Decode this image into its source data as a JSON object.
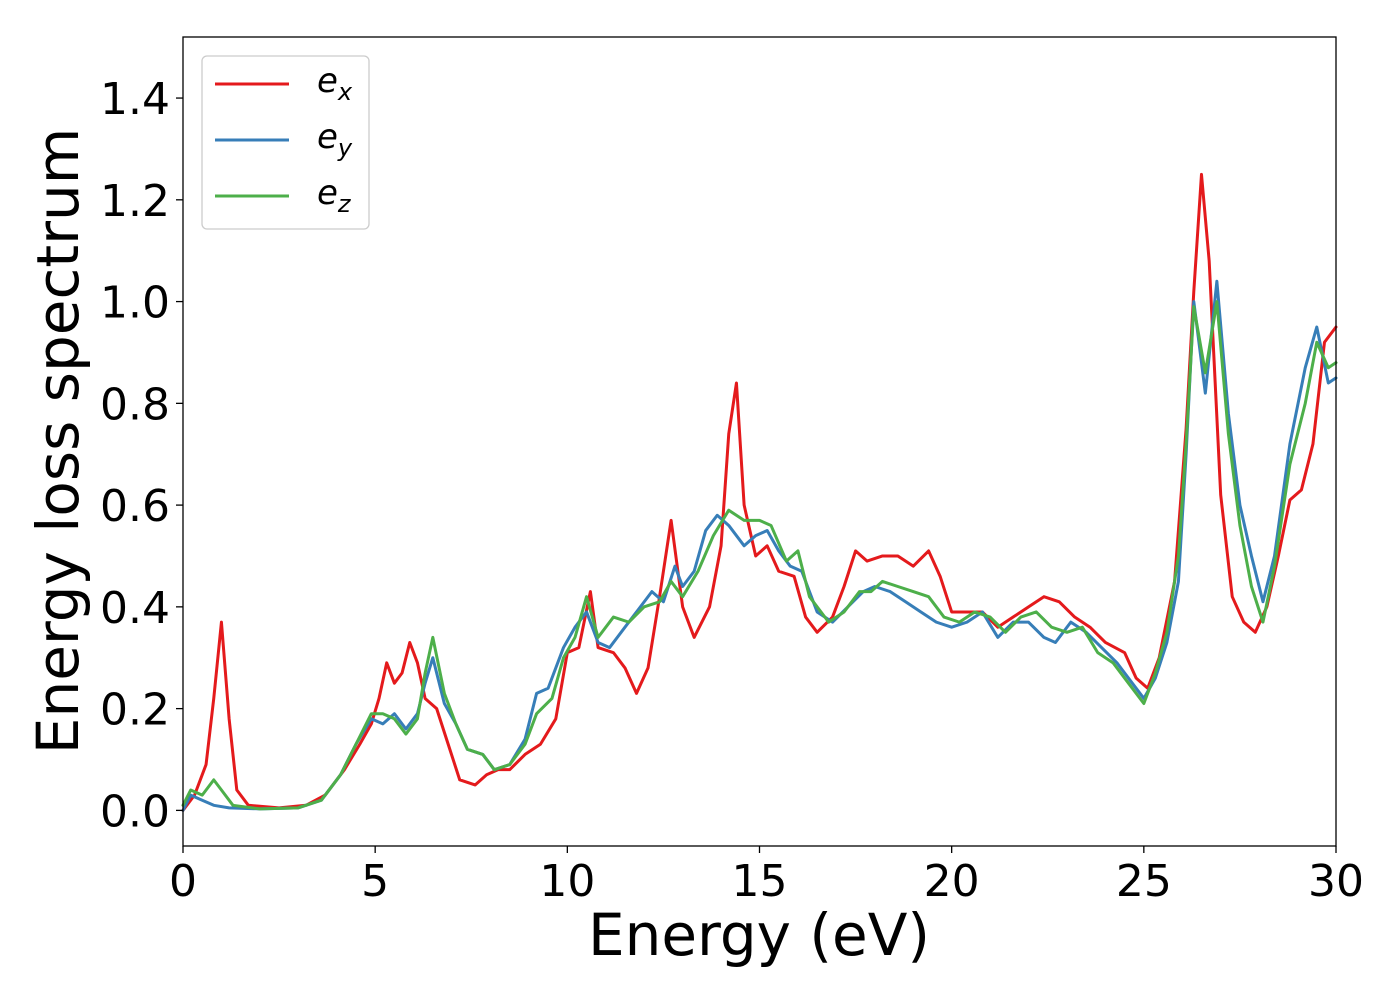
{
  "chart_data": {
    "type": "line",
    "title": "",
    "xlabel": "Energy (eV)",
    "ylabel": "Energy loss spectrum",
    "xlim": [
      0,
      30
    ],
    "ylim": [
      -0.07,
      1.52
    ],
    "xticks": [
      0,
      5,
      10,
      15,
      20,
      25,
      30
    ],
    "xtick_labels": [
      "0",
      "5",
      "10",
      "15",
      "20",
      "25",
      "30"
    ],
    "yticks": [
      0.0,
      0.2,
      0.4,
      0.6,
      0.8,
      1.0,
      1.2,
      1.4
    ],
    "ytick_labels": [
      "0.0",
      "0.2",
      "0.4",
      "0.6",
      "0.8",
      "1.0",
      "1.2",
      "1.4"
    ],
    "grid": false,
    "legend_position": "top-left",
    "series": [
      {
        "name_base": "e",
        "name_sub": "x",
        "color": "#e41a1c",
        "points": [
          [
            0.0,
            0.0
          ],
          [
            0.3,
            0.03
          ],
          [
            0.6,
            0.09
          ],
          [
            0.8,
            0.22
          ],
          [
            1.0,
            0.37
          ],
          [
            1.2,
            0.18
          ],
          [
            1.4,
            0.04
          ],
          [
            1.7,
            0.01
          ],
          [
            2.5,
            0.005
          ],
          [
            3.2,
            0.01
          ],
          [
            3.7,
            0.03
          ],
          [
            4.2,
            0.08
          ],
          [
            4.6,
            0.13
          ],
          [
            4.9,
            0.17
          ],
          [
            5.1,
            0.22
          ],
          [
            5.3,
            0.29
          ],
          [
            5.5,
            0.25
          ],
          [
            5.7,
            0.27
          ],
          [
            5.9,
            0.33
          ],
          [
            6.1,
            0.29
          ],
          [
            6.3,
            0.22
          ],
          [
            6.6,
            0.2
          ],
          [
            6.9,
            0.13
          ],
          [
            7.2,
            0.06
          ],
          [
            7.6,
            0.05
          ],
          [
            7.9,
            0.07
          ],
          [
            8.2,
            0.08
          ],
          [
            8.5,
            0.08
          ],
          [
            8.9,
            0.11
          ],
          [
            9.3,
            0.13
          ],
          [
            9.7,
            0.18
          ],
          [
            10.0,
            0.31
          ],
          [
            10.3,
            0.32
          ],
          [
            10.6,
            0.43
          ],
          [
            10.8,
            0.32
          ],
          [
            11.2,
            0.31
          ],
          [
            11.5,
            0.28
          ],
          [
            11.8,
            0.23
          ],
          [
            12.1,
            0.28
          ],
          [
            12.4,
            0.42
          ],
          [
            12.7,
            0.57
          ],
          [
            13.0,
            0.4
          ],
          [
            13.3,
            0.34
          ],
          [
            13.7,
            0.4
          ],
          [
            14.0,
            0.52
          ],
          [
            14.2,
            0.74
          ],
          [
            14.4,
            0.84
          ],
          [
            14.6,
            0.6
          ],
          [
            14.9,
            0.5
          ],
          [
            15.2,
            0.52
          ],
          [
            15.5,
            0.47
          ],
          [
            15.9,
            0.46
          ],
          [
            16.2,
            0.38
          ],
          [
            16.5,
            0.35
          ],
          [
            16.9,
            0.38
          ],
          [
            17.2,
            0.44
          ],
          [
            17.5,
            0.51
          ],
          [
            17.8,
            0.49
          ],
          [
            18.2,
            0.5
          ],
          [
            18.6,
            0.5
          ],
          [
            19.0,
            0.48
          ],
          [
            19.4,
            0.51
          ],
          [
            19.7,
            0.46
          ],
          [
            20.0,
            0.39
          ],
          [
            20.4,
            0.39
          ],
          [
            20.8,
            0.39
          ],
          [
            21.2,
            0.36
          ],
          [
            21.6,
            0.38
          ],
          [
            22.0,
            0.4
          ],
          [
            22.4,
            0.42
          ],
          [
            22.8,
            0.41
          ],
          [
            23.2,
            0.38
          ],
          [
            23.6,
            0.36
          ],
          [
            24.0,
            0.33
          ],
          [
            24.5,
            0.31
          ],
          [
            24.8,
            0.26
          ],
          [
            25.1,
            0.24
          ],
          [
            25.4,
            0.3
          ],
          [
            25.8,
            0.45
          ],
          [
            26.1,
            0.75
          ],
          [
            26.3,
            1.02
          ],
          [
            26.5,
            1.25
          ],
          [
            26.7,
            1.08
          ],
          [
            27.0,
            0.62
          ],
          [
            27.3,
            0.42
          ],
          [
            27.6,
            0.37
          ],
          [
            27.9,
            0.35
          ],
          [
            28.2,
            0.4
          ],
          [
            28.5,
            0.5
          ],
          [
            28.8,
            0.61
          ],
          [
            29.1,
            0.63
          ],
          [
            29.4,
            0.72
          ],
          [
            29.7,
            0.92
          ],
          [
            30.0,
            0.95
          ]
        ]
      },
      {
        "name_base": "e",
        "name_sub": "y",
        "color": "#377eb8",
        "points": [
          [
            0.0,
            0.0
          ],
          [
            0.2,
            0.03
          ],
          [
            0.5,
            0.02
          ],
          [
            0.8,
            0.01
          ],
          [
            1.2,
            0.005
          ],
          [
            2.0,
            0.003
          ],
          [
            3.0,
            0.005
          ],
          [
            3.6,
            0.02
          ],
          [
            4.1,
            0.07
          ],
          [
            4.5,
            0.13
          ],
          [
            4.9,
            0.18
          ],
          [
            5.2,
            0.17
          ],
          [
            5.5,
            0.19
          ],
          [
            5.8,
            0.16
          ],
          [
            6.1,
            0.19
          ],
          [
            6.3,
            0.25
          ],
          [
            6.5,
            0.3
          ],
          [
            6.8,
            0.21
          ],
          [
            7.1,
            0.17
          ],
          [
            7.4,
            0.12
          ],
          [
            7.8,
            0.11
          ],
          [
            8.1,
            0.08
          ],
          [
            8.5,
            0.09
          ],
          [
            8.9,
            0.14
          ],
          [
            9.2,
            0.23
          ],
          [
            9.5,
            0.24
          ],
          [
            9.9,
            0.32
          ],
          [
            10.2,
            0.36
          ],
          [
            10.5,
            0.39
          ],
          [
            10.8,
            0.33
          ],
          [
            11.1,
            0.32
          ],
          [
            11.5,
            0.36
          ],
          [
            11.9,
            0.4
          ],
          [
            12.2,
            0.43
          ],
          [
            12.5,
            0.41
          ],
          [
            12.8,
            0.48
          ],
          [
            13.0,
            0.44
          ],
          [
            13.3,
            0.47
          ],
          [
            13.6,
            0.55
          ],
          [
            13.9,
            0.58
          ],
          [
            14.2,
            0.56
          ],
          [
            14.6,
            0.52
          ],
          [
            14.9,
            0.54
          ],
          [
            15.2,
            0.55
          ],
          [
            15.5,
            0.51
          ],
          [
            15.8,
            0.48
          ],
          [
            16.1,
            0.47
          ],
          [
            16.5,
            0.39
          ],
          [
            16.9,
            0.37
          ],
          [
            17.3,
            0.4
          ],
          [
            17.7,
            0.43
          ],
          [
            18.0,
            0.44
          ],
          [
            18.4,
            0.43
          ],
          [
            18.8,
            0.41
          ],
          [
            19.2,
            0.39
          ],
          [
            19.6,
            0.37
          ],
          [
            20.0,
            0.36
          ],
          [
            20.4,
            0.37
          ],
          [
            20.8,
            0.39
          ],
          [
            21.2,
            0.34
          ],
          [
            21.6,
            0.37
          ],
          [
            22.0,
            0.37
          ],
          [
            22.4,
            0.34
          ],
          [
            22.7,
            0.33
          ],
          [
            23.1,
            0.37
          ],
          [
            23.5,
            0.35
          ],
          [
            23.9,
            0.32
          ],
          [
            24.3,
            0.29
          ],
          [
            24.7,
            0.25
          ],
          [
            25.0,
            0.22
          ],
          [
            25.3,
            0.26
          ],
          [
            25.6,
            0.33
          ],
          [
            25.9,
            0.45
          ],
          [
            26.1,
            0.7
          ],
          [
            26.3,
            1.0
          ],
          [
            26.6,
            0.82
          ],
          [
            26.9,
            1.04
          ],
          [
            27.2,
            0.78
          ],
          [
            27.5,
            0.6
          ],
          [
            27.8,
            0.5
          ],
          [
            28.1,
            0.41
          ],
          [
            28.4,
            0.5
          ],
          [
            28.8,
            0.72
          ],
          [
            29.2,
            0.87
          ],
          [
            29.5,
            0.95
          ],
          [
            29.8,
            0.84
          ],
          [
            30.0,
            0.85
          ]
        ]
      },
      {
        "name_base": "e",
        "name_sub": "z",
        "color": "#4daf4a",
        "points": [
          [
            0.0,
            0.01
          ],
          [
            0.2,
            0.04
          ],
          [
            0.5,
            0.03
          ],
          [
            0.8,
            0.06
          ],
          [
            1.0,
            0.04
          ],
          [
            1.3,
            0.01
          ],
          [
            2.0,
            0.003
          ],
          [
            3.0,
            0.005
          ],
          [
            3.6,
            0.02
          ],
          [
            4.1,
            0.07
          ],
          [
            4.5,
            0.13
          ],
          [
            4.9,
            0.19
          ],
          [
            5.2,
            0.19
          ],
          [
            5.5,
            0.18
          ],
          [
            5.8,
            0.15
          ],
          [
            6.1,
            0.18
          ],
          [
            6.3,
            0.27
          ],
          [
            6.5,
            0.34
          ],
          [
            6.8,
            0.23
          ],
          [
            7.1,
            0.17
          ],
          [
            7.4,
            0.12
          ],
          [
            7.8,
            0.11
          ],
          [
            8.1,
            0.08
          ],
          [
            8.5,
            0.09
          ],
          [
            8.9,
            0.13
          ],
          [
            9.2,
            0.19
          ],
          [
            9.6,
            0.22
          ],
          [
            9.9,
            0.3
          ],
          [
            10.2,
            0.34
          ],
          [
            10.5,
            0.42
          ],
          [
            10.8,
            0.34
          ],
          [
            11.2,
            0.38
          ],
          [
            11.6,
            0.37
          ],
          [
            12.0,
            0.4
          ],
          [
            12.4,
            0.41
          ],
          [
            12.7,
            0.45
          ],
          [
            13.0,
            0.42
          ],
          [
            13.4,
            0.47
          ],
          [
            13.8,
            0.54
          ],
          [
            14.2,
            0.59
          ],
          [
            14.6,
            0.57
          ],
          [
            15.0,
            0.57
          ],
          [
            15.3,
            0.56
          ],
          [
            15.7,
            0.49
          ],
          [
            16.0,
            0.51
          ],
          [
            16.3,
            0.42
          ],
          [
            16.8,
            0.37
          ],
          [
            17.2,
            0.39
          ],
          [
            17.6,
            0.43
          ],
          [
            17.9,
            0.43
          ],
          [
            18.2,
            0.45
          ],
          [
            18.6,
            0.44
          ],
          [
            19.0,
            0.43
          ],
          [
            19.4,
            0.42
          ],
          [
            19.8,
            0.38
          ],
          [
            20.2,
            0.37
          ],
          [
            20.6,
            0.39
          ],
          [
            21.0,
            0.38
          ],
          [
            21.4,
            0.35
          ],
          [
            21.8,
            0.38
          ],
          [
            22.2,
            0.39
          ],
          [
            22.6,
            0.36
          ],
          [
            23.0,
            0.35
          ],
          [
            23.4,
            0.36
          ],
          [
            23.8,
            0.31
          ],
          [
            24.2,
            0.29
          ],
          [
            24.6,
            0.25
          ],
          [
            25.0,
            0.21
          ],
          [
            25.3,
            0.27
          ],
          [
            25.6,
            0.35
          ],
          [
            25.9,
            0.5
          ],
          [
            26.1,
            0.72
          ],
          [
            26.3,
            0.99
          ],
          [
            26.6,
            0.86
          ],
          [
            26.9,
            1.0
          ],
          [
            27.2,
            0.74
          ],
          [
            27.5,
            0.56
          ],
          [
            27.8,
            0.44
          ],
          [
            28.1,
            0.37
          ],
          [
            28.4,
            0.48
          ],
          [
            28.8,
            0.68
          ],
          [
            29.2,
            0.8
          ],
          [
            29.5,
            0.92
          ],
          [
            29.8,
            0.87
          ],
          [
            30.0,
            0.88
          ]
        ]
      }
    ]
  }
}
